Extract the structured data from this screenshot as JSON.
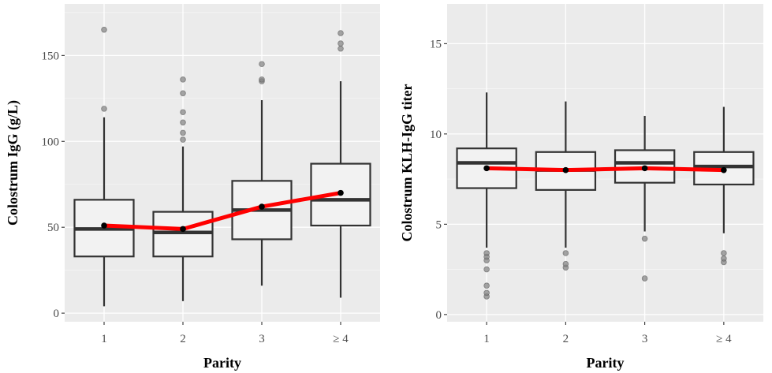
{
  "chart_data": [
    {
      "type": "boxplot",
      "xlabel": "Parity",
      "ylabel": "Colostrum IgG (g/L)",
      "categories": [
        "1",
        "2",
        "3",
        "≥ 4"
      ],
      "ylim": [
        -5,
        180
      ],
      "yticks": [
        0,
        50,
        100,
        150
      ],
      "grid": true,
      "boxes": [
        {
          "category": "1",
          "min": 4,
          "q1": 33,
          "median": 49,
          "q3": 66,
          "max": 114,
          "outliers": [
            119,
            165
          ]
        },
        {
          "category": "2",
          "min": 7,
          "q1": 33,
          "median": 47,
          "q3": 59,
          "max": 97,
          "outliers": [
            101,
            105,
            111,
            117,
            128,
            136
          ]
        },
        {
          "category": "3",
          "min": 16,
          "q1": 43,
          "median": 60,
          "q3": 77,
          "max": 124,
          "outliers": [
            135,
            136,
            145
          ]
        },
        {
          "category": "≥ 4",
          "min": 9,
          "q1": 51,
          "median": 66,
          "q3": 87,
          "max": 135,
          "outliers": [
            154,
            157,
            163
          ]
        }
      ],
      "mean_line": {
        "color": "#ff0000",
        "values": [
          51,
          49,
          62,
          70
        ]
      },
      "colors": {
        "box_fill": "#f2f2f2",
        "box_stroke": "#333333",
        "outlier": "#7f7f7f",
        "mean_point": "#000000",
        "panel": "#ebebeb"
      }
    },
    {
      "type": "boxplot",
      "xlabel": "Parity",
      "ylabel": "Colostrum KLH-IgG titer",
      "categories": [
        "1",
        "2",
        "3",
        "≥ 4"
      ],
      "ylim": [
        -0.4,
        17.2
      ],
      "yticks": [
        0,
        5,
        10,
        15
      ],
      "grid": true,
      "boxes": [
        {
          "category": "1",
          "min": 3.7,
          "q1": 7.0,
          "median": 8.4,
          "q3": 9.2,
          "max": 12.3,
          "outliers": [
            1.0,
            1.2,
            1.6,
            2.5,
            3.0,
            3.2,
            3.4
          ]
        },
        {
          "category": "2",
          "min": 3.7,
          "q1": 6.9,
          "median": 8.0,
          "q3": 9.0,
          "max": 11.8,
          "outliers": [
            2.6,
            2.8,
            3.4
          ]
        },
        {
          "category": "3",
          "min": 4.6,
          "q1": 7.3,
          "median": 8.4,
          "q3": 9.1,
          "max": 11.0,
          "outliers": [
            2.0,
            4.2
          ]
        },
        {
          "category": "≥ 4",
          "min": 4.5,
          "q1": 7.2,
          "median": 8.2,
          "q3": 9.0,
          "max": 11.5,
          "outliers": [
            2.9,
            3.1,
            3.4
          ]
        }
      ],
      "mean_line": {
        "color": "#ff0000",
        "values": [
          8.1,
          8.0,
          8.1,
          8.0
        ]
      },
      "colors": {
        "box_fill": "#f2f2f2",
        "box_stroke": "#333333",
        "outlier": "#7f7f7f",
        "mean_point": "#000000",
        "panel": "#ebebeb"
      }
    }
  ]
}
